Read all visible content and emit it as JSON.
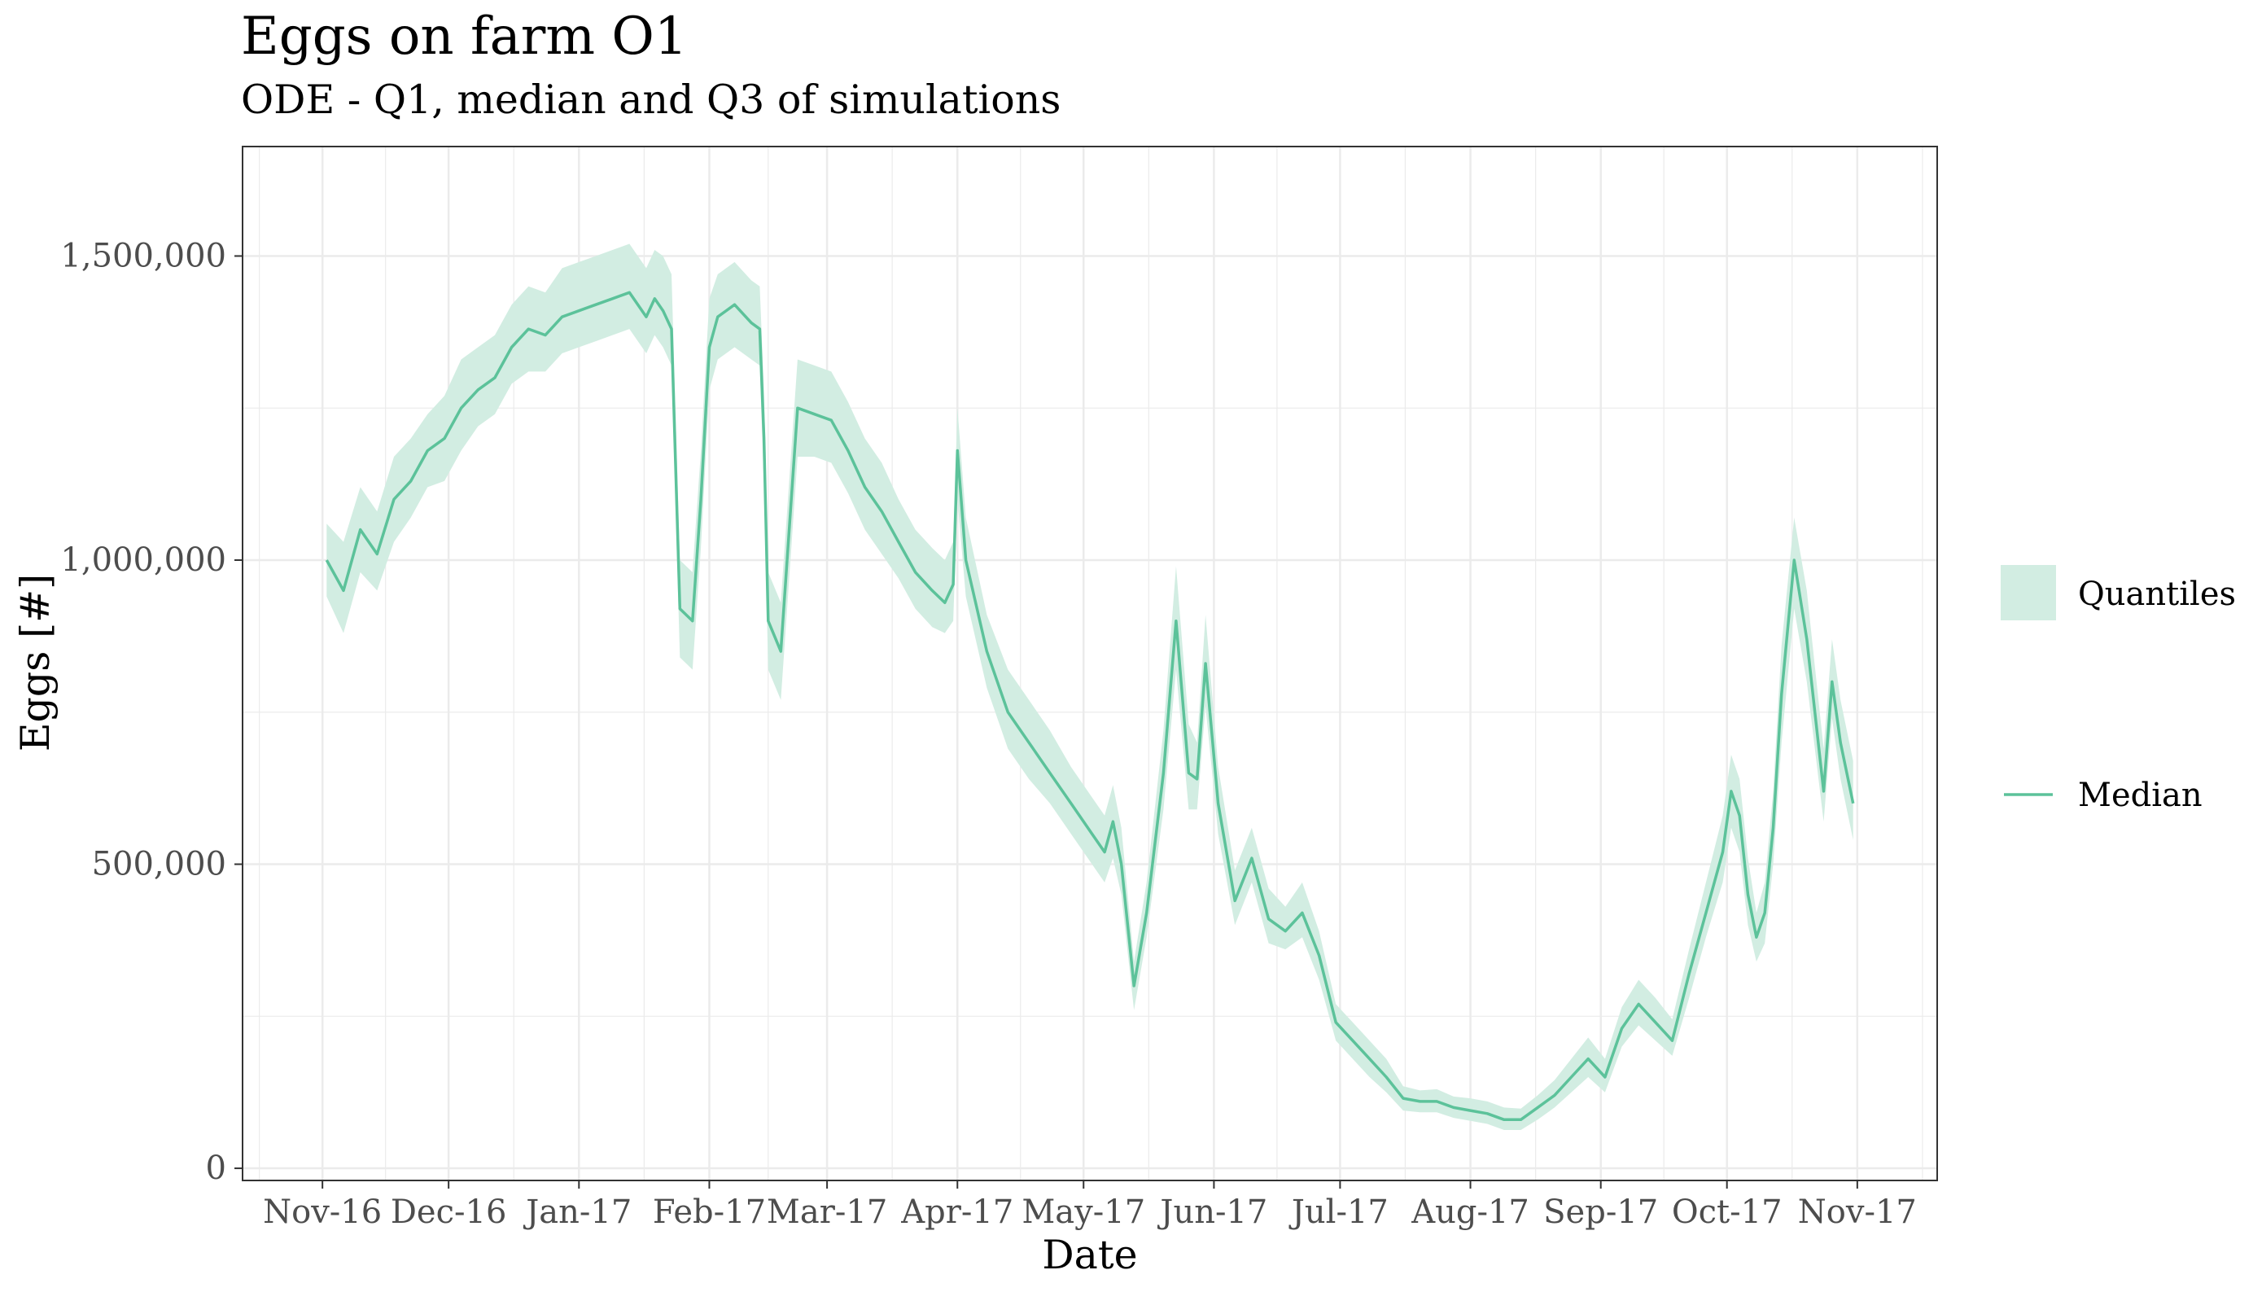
{
  "title": "Eggs on farm O1",
  "subtitle": "ODE - Q1, median and Q3 of simulations",
  "colors": {
    "line": "#5cc29a",
    "band": "#d2ede2",
    "grid": "#ebebeb",
    "panel_border": "#333333"
  },
  "chart_data": {
    "type": "area",
    "xlabel": "Date",
    "ylabel": "Eggs [#]",
    "ylim": [
      -20000,
      1680000
    ],
    "xlim": [
      "2016-10-13",
      "2017-11-20"
    ],
    "y_ticks": [
      {
        "value": 0,
        "label": "0"
      },
      {
        "value": 500000,
        "label": "500,000"
      },
      {
        "value": 1000000,
        "label": "1,000,000"
      },
      {
        "value": 1500000,
        "label": "1,500,000"
      }
    ],
    "x_ticks": [
      {
        "value": "2016-11-01",
        "label": "Nov-16"
      },
      {
        "value": "2016-12-01",
        "label": "Dec-16"
      },
      {
        "value": "2017-01-01",
        "label": "Jan-17"
      },
      {
        "value": "2017-02-01",
        "label": "Feb-17"
      },
      {
        "value": "2017-03-01",
        "label": "Mar-17"
      },
      {
        "value": "2017-04-01",
        "label": "Apr-17"
      },
      {
        "value": "2017-05-01",
        "label": "May-17"
      },
      {
        "value": "2017-06-01",
        "label": "Jun-17"
      },
      {
        "value": "2017-07-01",
        "label": "Jul-17"
      },
      {
        "value": "2017-08-01",
        "label": "Aug-17"
      },
      {
        "value": "2017-09-01",
        "label": "Sep-17"
      },
      {
        "value": "2017-10-01",
        "label": "Oct-17"
      },
      {
        "value": "2017-11-01",
        "label": "Nov-17"
      }
    ],
    "grid": true,
    "legend_position": "right",
    "series": [
      {
        "name": "Median",
        "x": [
          "2016-11-02",
          "2016-11-06",
          "2016-11-10",
          "2016-11-14",
          "2016-11-18",
          "2016-11-22",
          "2016-11-26",
          "2016-11-30",
          "2016-12-04",
          "2016-12-08",
          "2016-12-12",
          "2016-12-16",
          "2016-12-20",
          "2016-12-24",
          "2016-12-28",
          "2017-01-01",
          "2017-01-05",
          "2017-01-09",
          "2017-01-13",
          "2017-01-17",
          "2017-01-19",
          "2017-01-21",
          "2017-01-23",
          "2017-01-25",
          "2017-01-28",
          "2017-01-30",
          "2017-02-01",
          "2017-02-03",
          "2017-02-07",
          "2017-02-11",
          "2017-02-13",
          "2017-02-14",
          "2017-02-15",
          "2017-02-18",
          "2017-02-22",
          "2017-02-26",
          "2017-03-02",
          "2017-03-06",
          "2017-03-10",
          "2017-03-14",
          "2017-03-18",
          "2017-03-22",
          "2017-03-26",
          "2017-03-29",
          "2017-03-31",
          "2017-04-01",
          "2017-04-03",
          "2017-04-08",
          "2017-04-13",
          "2017-04-18",
          "2017-04-23",
          "2017-04-28",
          "2017-05-03",
          "2017-05-06",
          "2017-05-08",
          "2017-05-10",
          "2017-05-13",
          "2017-05-16",
          "2017-05-20",
          "2017-05-23",
          "2017-05-26",
          "2017-05-28",
          "2017-05-30",
          "2017-06-02",
          "2017-06-06",
          "2017-06-10",
          "2017-06-14",
          "2017-06-18",
          "2017-06-22",
          "2017-06-26",
          "2017-06-30",
          "2017-07-04",
          "2017-07-08",
          "2017-07-12",
          "2017-07-16",
          "2017-07-20",
          "2017-07-24",
          "2017-07-28",
          "2017-08-01",
          "2017-08-05",
          "2017-08-09",
          "2017-08-13",
          "2017-08-17",
          "2017-08-21",
          "2017-08-25",
          "2017-08-29",
          "2017-09-02",
          "2017-09-06",
          "2017-09-10",
          "2017-09-14",
          "2017-09-18",
          "2017-09-22",
          "2017-09-26",
          "2017-09-30",
          "2017-10-02",
          "2017-10-04",
          "2017-10-06",
          "2017-10-08",
          "2017-10-10",
          "2017-10-12",
          "2017-10-14",
          "2017-10-17",
          "2017-10-20",
          "2017-10-24",
          "2017-10-26",
          "2017-10-28",
          "2017-10-31"
        ],
        "values": [
          1000000,
          950000,
          1050000,
          1010000,
          1100000,
          1130000,
          1180000,
          1200000,
          1250000,
          1280000,
          1300000,
          1350000,
          1380000,
          1370000,
          1400000,
          1410000,
          1420000,
          1430000,
          1440000,
          1400000,
          1430000,
          1410000,
          1380000,
          920000,
          900000,
          1100000,
          1350000,
          1400000,
          1420000,
          1390000,
          1380000,
          1200000,
          900000,
          850000,
          1250000,
          1240000,
          1230000,
          1180000,
          1120000,
          1080000,
          1030000,
          980000,
          950000,
          930000,
          960000,
          1180000,
          1000000,
          850000,
          750000,
          700000,
          650000,
          600000,
          550000,
          520000,
          570000,
          500000,
          300000,
          420000,
          650000,
          900000,
          650000,
          640000,
          830000,
          600000,
          440000,
          510000,
          410000,
          390000,
          420000,
          350000,
          240000,
          210000,
          180000,
          150000,
          115000,
          110000,
          110000,
          100000,
          95000,
          90000,
          80000,
          80000,
          100000,
          120000,
          150000,
          180000,
          150000,
          230000,
          270000,
          240000,
          210000,
          320000,
          420000,
          520000,
          620000,
          580000,
          450000,
          380000,
          420000,
          560000,
          780000,
          1000000,
          870000,
          620000,
          800000,
          700000,
          600000
        ],
        "q1": [
          940000,
          880000,
          980000,
          950000,
          1030000,
          1070000,
          1120000,
          1130000,
          1180000,
          1220000,
          1240000,
          1290000,
          1310000,
          1310000,
          1340000,
          1350000,
          1360000,
          1370000,
          1380000,
          1340000,
          1370000,
          1350000,
          1320000,
          840000,
          820000,
          1020000,
          1280000,
          1330000,
          1350000,
          1330000,
          1320000,
          1120000,
          820000,
          770000,
          1170000,
          1170000,
          1160000,
          1110000,
          1050000,
          1010000,
          970000,
          920000,
          890000,
          880000,
          900000,
          1100000,
          940000,
          790000,
          690000,
          640000,
          600000,
          550000,
          500000,
          470000,
          510000,
          450000,
          260000,
          380000,
          590000,
          820000,
          590000,
          590000,
          760000,
          550000,
          400000,
          470000,
          370000,
          360000,
          380000,
          310000,
          210000,
          180000,
          150000,
          125000,
          95000,
          92000,
          92000,
          83000,
          78000,
          73000,
          63000,
          63000,
          80000,
          100000,
          125000,
          150000,
          125000,
          200000,
          235000,
          210000,
          185000,
          280000,
          380000,
          470000,
          560000,
          520000,
          400000,
          340000,
          370000,
          500000,
          700000,
          920000,
          800000,
          570000,
          740000,
          640000,
          540000
        ],
        "q3": [
          1060000,
          1030000,
          1120000,
          1080000,
          1170000,
          1200000,
          1240000,
          1270000,
          1330000,
          1350000,
          1370000,
          1420000,
          1450000,
          1440000,
          1480000,
          1490000,
          1500000,
          1510000,
          1520000,
          1480000,
          1510000,
          1500000,
          1470000,
          1000000,
          980000,
          1180000,
          1430000,
          1470000,
          1490000,
          1460000,
          1450000,
          1280000,
          980000,
          930000,
          1330000,
          1320000,
          1310000,
          1260000,
          1200000,
          1160000,
          1100000,
          1050000,
          1020000,
          1000000,
          1030000,
          1250000,
          1070000,
          910000,
          820000,
          770000,
          720000,
          660000,
          610000,
          580000,
          630000,
          560000,
          340000,
          470000,
          720000,
          990000,
          730000,
          700000,
          910000,
          660000,
          490000,
          560000,
          460000,
          430000,
          470000,
          390000,
          270000,
          240000,
          210000,
          180000,
          135000,
          128000,
          130000,
          118000,
          115000,
          110000,
          100000,
          98000,
          120000,
          145000,
          180000,
          215000,
          180000,
          265000,
          310000,
          280000,
          245000,
          360000,
          470000,
          580000,
          680000,
          640000,
          510000,
          420000,
          470000,
          620000,
          860000,
          1070000,
          950000,
          690000,
          870000,
          770000,
          670000
        ]
      }
    ],
    "legend": [
      {
        "label": "Quantiles",
        "kind": "band"
      },
      {
        "label": "Median",
        "kind": "line"
      }
    ]
  }
}
